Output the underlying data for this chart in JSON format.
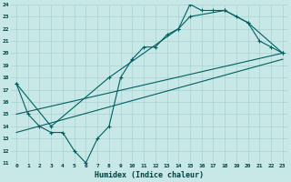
{
  "title": "",
  "xlabel": "Humidex (Indice chaleur)",
  "ylabel": "",
  "bg_color": "#c8e8e8",
  "grid_color": "#a8d0d0",
  "line_color": "#006060",
  "xlim": [
    -0.5,
    23.5
  ],
  "ylim": [
    11,
    24
  ],
  "xticks": [
    0,
    1,
    2,
    3,
    4,
    5,
    6,
    7,
    8,
    9,
    10,
    11,
    12,
    13,
    14,
    15,
    16,
    17,
    18,
    19,
    20,
    21,
    22,
    23
  ],
  "yticks": [
    11,
    12,
    13,
    14,
    15,
    16,
    17,
    18,
    19,
    20,
    21,
    22,
    23,
    24
  ],
  "series": [
    {
      "x": [
        0,
        1,
        2,
        3,
        4,
        5,
        6,
        7,
        8,
        9,
        10,
        11,
        12,
        13,
        14,
        15,
        16,
        17,
        18,
        19,
        20,
        21,
        22,
        23
      ],
      "y": [
        17.5,
        15.0,
        14.0,
        13.5,
        13.5,
        12.0,
        11.0,
        13.0,
        14.0,
        18.0,
        19.5,
        20.5,
        20.5,
        21.5,
        22.0,
        24.0,
        23.5,
        23.5,
        23.5,
        23.0,
        22.5,
        21.0,
        20.5,
        20.0
      ],
      "marker": true
    },
    {
      "x": [
        0,
        3,
        8,
        14,
        15,
        18,
        20,
        23
      ],
      "y": [
        17.5,
        14.0,
        18.0,
        22.0,
        23.0,
        23.5,
        22.5,
        20.0
      ],
      "marker": true
    },
    {
      "x": [
        0,
        23
      ],
      "y": [
        15.0,
        20.0
      ],
      "marker": false
    },
    {
      "x": [
        0,
        23
      ],
      "y": [
        13.5,
        19.5
      ],
      "marker": false
    }
  ]
}
